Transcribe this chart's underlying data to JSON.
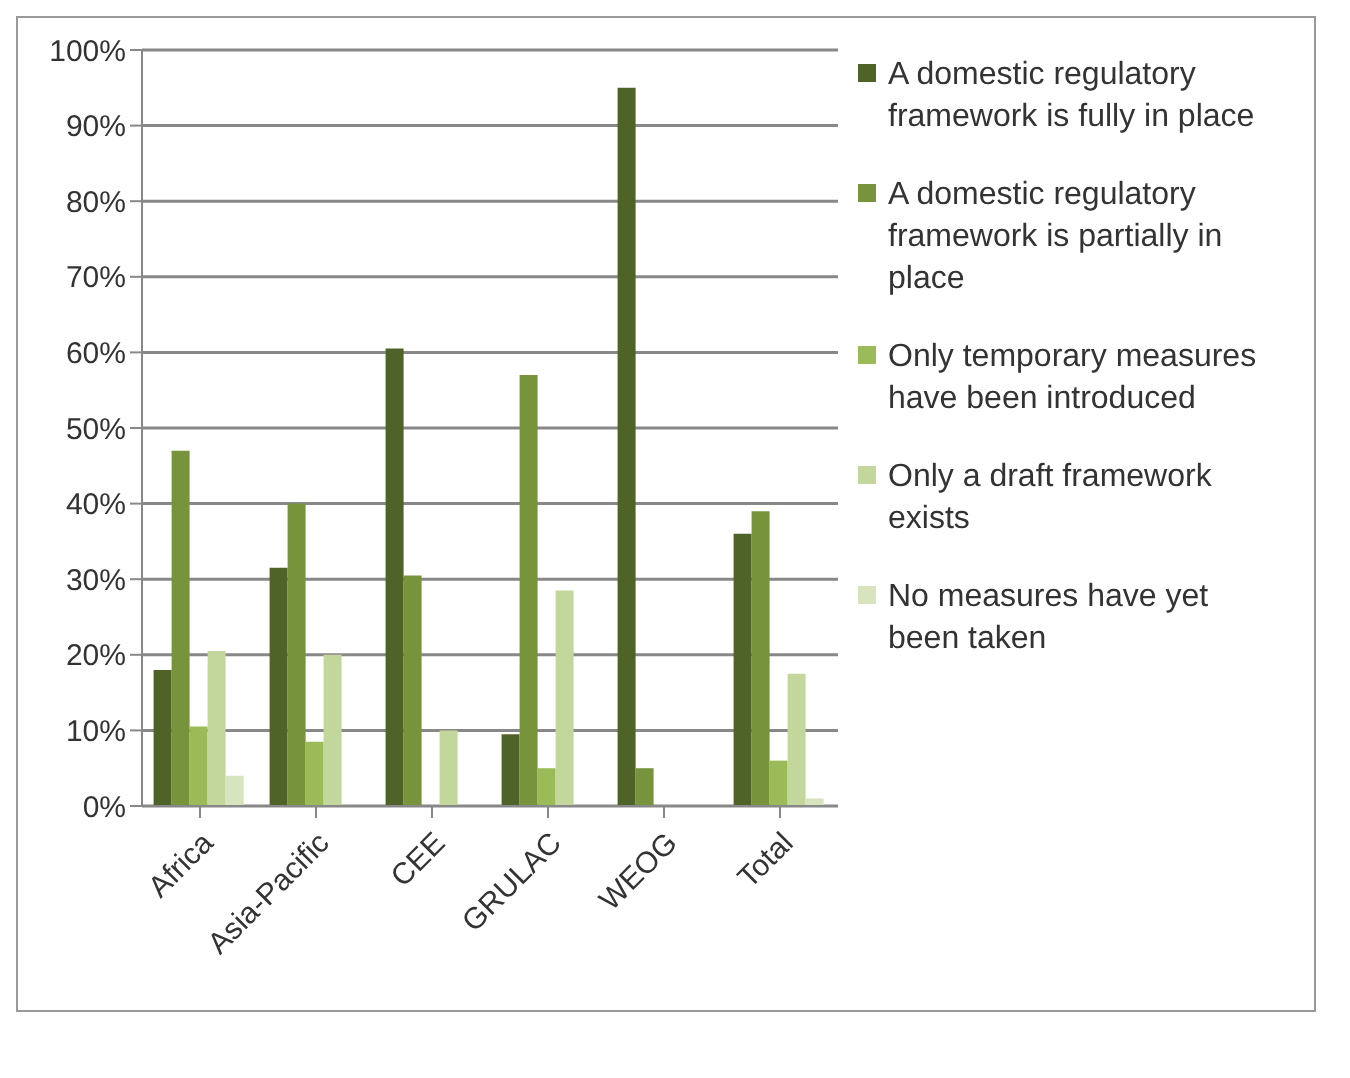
{
  "chart_data": {
    "type": "bar",
    "categories": [
      "Africa",
      "Asia-Pacific",
      "CEE",
      "GRULAC",
      "WEOG",
      "Total"
    ],
    "series": [
      {
        "name": "A domestic regulatory framework is fully in place",
        "color": "#4f6228",
        "values": [
          18,
          31.5,
          60.5,
          9.5,
          95,
          36
        ]
      },
      {
        "name": "A domestic regulatory framework is partially in place",
        "color": "#77933c",
        "values": [
          47,
          40,
          30.5,
          57,
          5,
          39
        ]
      },
      {
        "name": "Only temporary measures have been introduced",
        "color": "#9bbb59",
        "values": [
          10.5,
          8.5,
          0,
          5,
          0,
          6
        ]
      },
      {
        "name": "Only a draft framework exists",
        "color": "#c3d69b",
        "values": [
          20.5,
          20,
          10,
          28.5,
          0,
          17.5
        ]
      },
      {
        "name": "No measures have yet been taken",
        "color": "#d7e4bd",
        "values": [
          4,
          0,
          0,
          0,
          0,
          1
        ]
      }
    ],
    "ylim": [
      0,
      100
    ],
    "yticks": [
      {
        "value": 0,
        "label": "0%"
      },
      {
        "value": 10,
        "label": "10%"
      },
      {
        "value": 20,
        "label": "20%"
      },
      {
        "value": 30,
        "label": "30%"
      },
      {
        "value": 40,
        "label": "40%"
      },
      {
        "value": 50,
        "label": "50%"
      },
      {
        "value": 60,
        "label": "60%"
      },
      {
        "value": 70,
        "label": "70%"
      },
      {
        "value": 80,
        "label": "80%"
      },
      {
        "value": 90,
        "label": "90%"
      },
      {
        "value": 100,
        "label": "100%"
      }
    ],
    "grid": "y",
    "legend": "right"
  }
}
